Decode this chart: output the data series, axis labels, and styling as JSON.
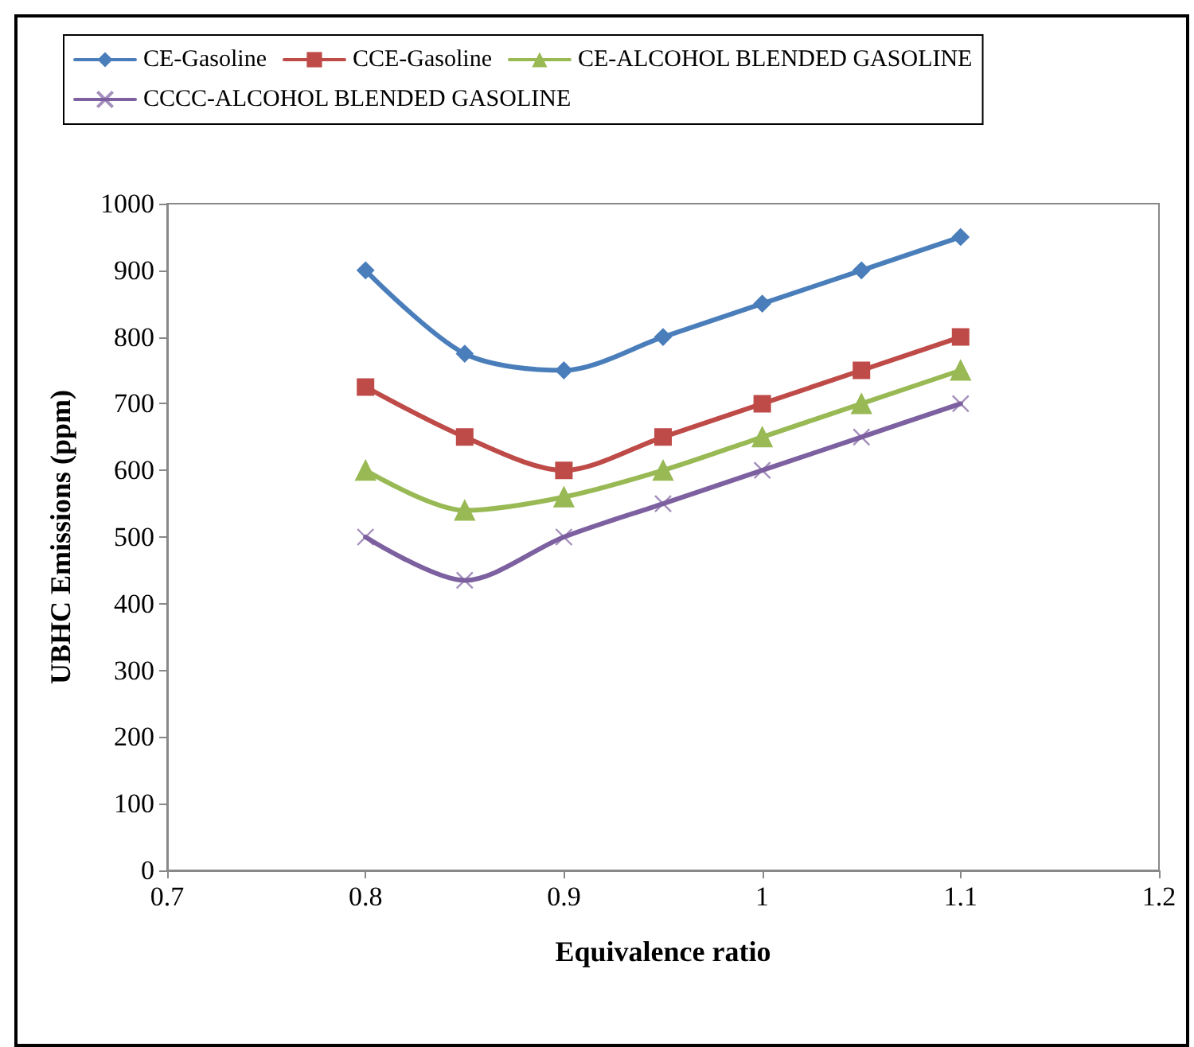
{
  "chart_data": {
    "type": "line",
    "xlabel": "Equivalence ratio",
    "ylabel": "UBHC Emissions (ppm)",
    "x": [
      0.8,
      0.85,
      0.9,
      0.95,
      1,
      1.05,
      1.1
    ],
    "xlim": [
      0.7,
      1.2
    ],
    "xticks": [
      0.7,
      0.8,
      0.9,
      1,
      1.1,
      1.2
    ],
    "ylim": [
      0,
      1000
    ],
    "yticks": [
      0,
      100,
      200,
      300,
      400,
      500,
      600,
      700,
      800,
      900,
      1000
    ],
    "grid": false,
    "legend": "top",
    "line_style": "solid",
    "series": [
      {
        "name": "CE-Gasoline",
        "color": "#4a7ebb",
        "marker": "diamond",
        "values": [
          900,
          775,
          750,
          800,
          850,
          900,
          950
        ]
      },
      {
        "name": "CCE-Gasoline",
        "color": "#be4b48",
        "marker": "square",
        "values": [
          725,
          650,
          600,
          650,
          700,
          750,
          800
        ]
      },
      {
        "name": "CE-ALCOHOL BLENDED GASOLINE",
        "color": "#98b954",
        "marker": "triangle",
        "values": [
          600,
          540,
          560,
          600,
          650,
          700,
          750
        ]
      },
      {
        "name": "CCCC-ALCOHOL BLENDED GASOLINE",
        "color": "#7d60a0",
        "marker": "cross",
        "values": [
          500,
          435,
          500,
          550,
          600,
          650,
          700
        ]
      }
    ]
  }
}
